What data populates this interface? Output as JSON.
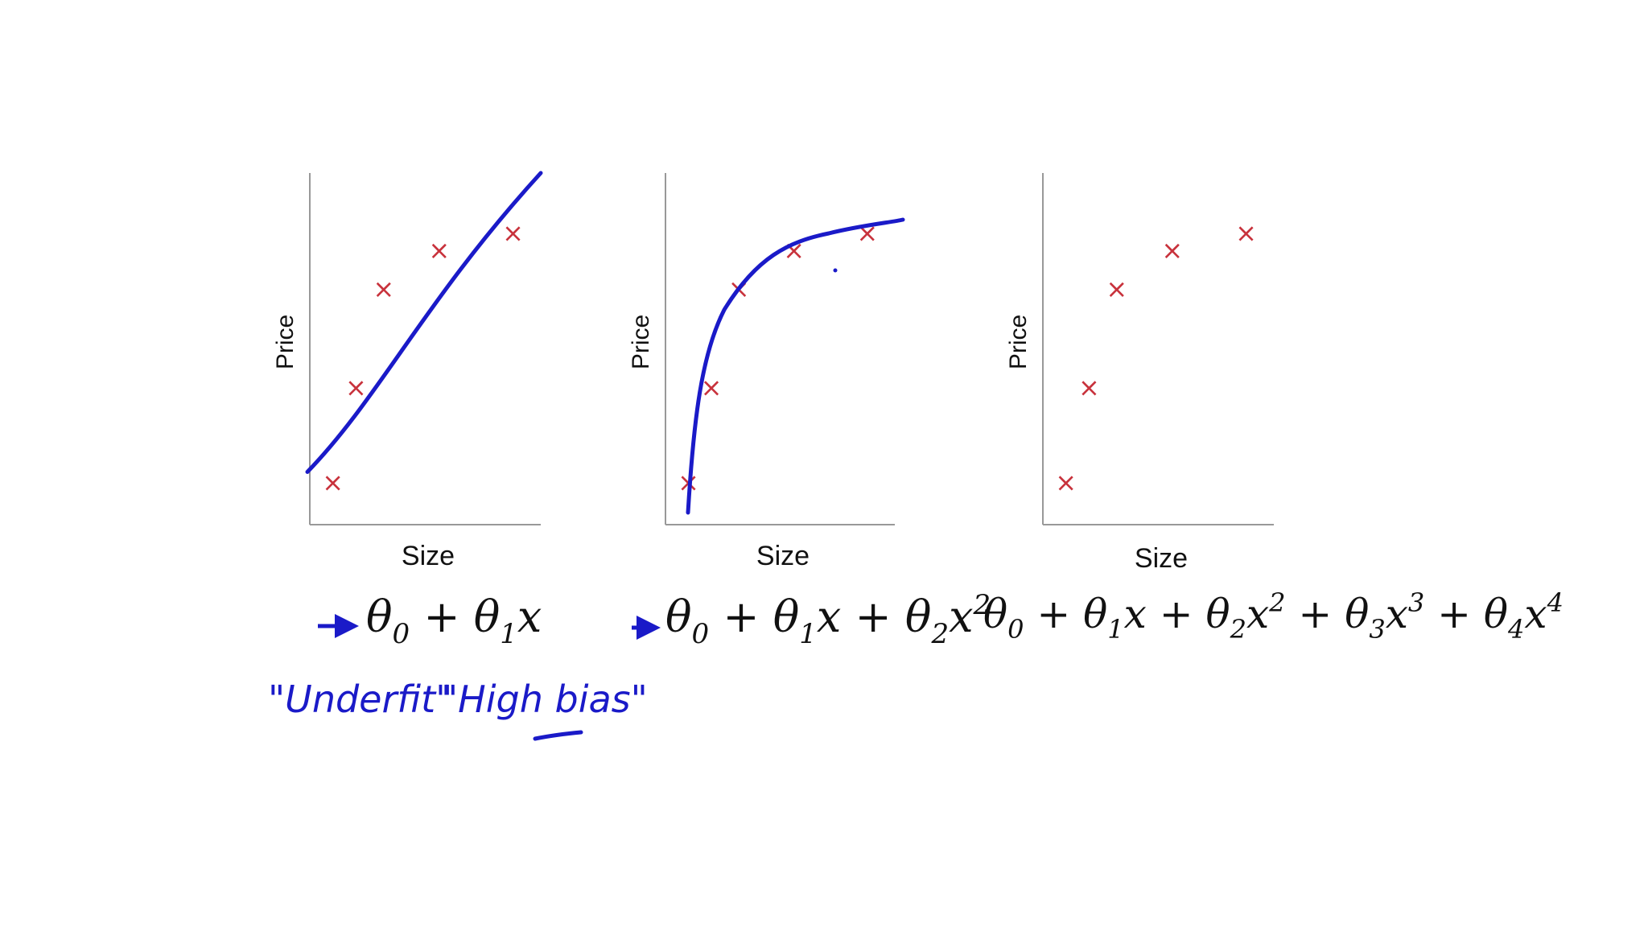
{
  "colors": {
    "point": "#c8323c",
    "fit_curve": "#1a1ac8",
    "axis": "#999999",
    "annotation": "#1a1ac8",
    "text": "#111111"
  },
  "chart_data": [
    {
      "type": "scatter",
      "xlabel": "Size",
      "ylabel": "Price",
      "points": [
        {
          "x": 1.0,
          "y": 1.2
        },
        {
          "x": 2.0,
          "y": 3.9
        },
        {
          "x": 3.2,
          "y": 6.7
        },
        {
          "x": 5.6,
          "y": 7.8
        },
        {
          "x": 8.8,
          "y": 8.3
        }
      ],
      "xlim": [
        0,
        10
      ],
      "ylim": [
        0,
        10
      ],
      "fit": {
        "kind": "linear",
        "y_at_x0": 1.1,
        "y_at_x10": 10.0
      },
      "formula_parts": [
        "θ",
        "0",
        " + θ",
        "1",
        "x"
      ],
      "annotations": [
        "\"Underfit\"",
        "\"High bias\""
      ]
    },
    {
      "type": "scatter",
      "xlabel": "Size",
      "ylabel": "Price",
      "points": [
        {
          "x": 1.0,
          "y": 1.2
        },
        {
          "x": 2.0,
          "y": 3.9
        },
        {
          "x": 3.2,
          "y": 6.7
        },
        {
          "x": 5.6,
          "y": 7.8
        },
        {
          "x": 8.8,
          "y": 8.3
        }
      ],
      "xlim": [
        0,
        10
      ],
      "ylim": [
        0,
        10
      ],
      "fit": {
        "kind": "quadratic-looking saturating curve"
      },
      "formula_parts": [
        "θ",
        "0",
        " + θ",
        "1",
        "x + θ",
        "2",
        "x",
        "2"
      ]
    },
    {
      "type": "scatter",
      "xlabel": "Size",
      "ylabel": "Price",
      "points": [
        {
          "x": 1.0,
          "y": 1.2
        },
        {
          "x": 2.0,
          "y": 3.9
        },
        {
          "x": 3.2,
          "y": 6.7
        },
        {
          "x": 5.6,
          "y": 7.8
        },
        {
          "x": 8.8,
          "y": 8.3
        }
      ],
      "xlim": [
        0,
        10
      ],
      "ylim": [
        0,
        10
      ],
      "formula_parts": [
        "θ",
        "0",
        " + θ",
        "1",
        "x + θ",
        "2",
        "x",
        "2",
        " + θ",
        "3",
        "x",
        "3",
        " + θ",
        "4",
        "x",
        "4"
      ]
    }
  ]
}
